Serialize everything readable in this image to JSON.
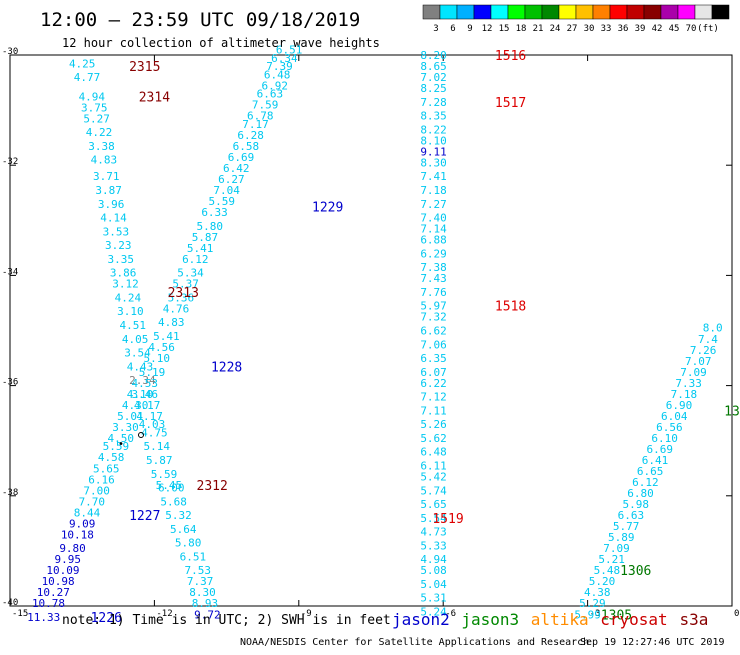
{
  "title": "12:00 – 23:59 UTC 09/18/2019",
  "subtitle": "12 hour collection of altimeter wave heights",
  "colorbar": {
    "colors": [
      "#808080",
      "#00e5ff",
      "#00b0ff",
      "#0000ff",
      "#00ffff",
      "#00ff00",
      "#00c000",
      "#008800",
      "#ffff00",
      "#ffc000",
      "#ff8000",
      "#ff0000",
      "#c00000",
      "#880000",
      "#aa00aa",
      "#ff00ff",
      "#e6e6e6",
      "#000000"
    ],
    "labels": [
      "3",
      "6",
      "9",
      "12",
      "15",
      "18",
      "21",
      "24",
      "27",
      "30",
      "33",
      "36",
      "39",
      "42",
      "45",
      "70",
      "(ft)"
    ]
  },
  "map": {
    "x_range": [
      -15,
      0
    ],
    "y_range": [
      -40,
      -30
    ],
    "x_ticks": [
      "-15",
      "-12",
      "-9",
      "-6",
      "-3",
      "0"
    ],
    "y_ticks": [
      "-30",
      "-32",
      "-34",
      "-36",
      "-38",
      "-40"
    ]
  },
  "satellite_colors": {
    "jason2": "#0000cc",
    "jason3": "#008800",
    "altika": "#ff8c00",
    "cryosat": "#cc0000",
    "s3a": "#880000"
  },
  "tracks": [
    {
      "name": "track-2315-2313",
      "color": "#00c8f0",
      "points": [
        {
          "lon": -13.5,
          "lat": -30.15,
          "v": "4.25"
        },
        {
          "lon": -13.4,
          "lat": -30.4,
          "v": "4.77"
        },
        {
          "lon": -13.3,
          "lat": -30.75,
          "v": "4.94"
        },
        {
          "lon": -13.25,
          "lat": -30.95,
          "v": "3.75"
        },
        {
          "lon": -13.2,
          "lat": -31.15,
          "v": "5.27"
        },
        {
          "lon": -13.15,
          "lat": -31.4,
          "v": "4.22"
        },
        {
          "lon": -13.1,
          "lat": -31.65,
          "v": "3.38"
        },
        {
          "lon": -13.05,
          "lat": -31.9,
          "v": "4.83"
        },
        {
          "lon": -13.0,
          "lat": -32.2,
          "v": "3.71"
        },
        {
          "lon": -12.95,
          "lat": -32.45,
          "v": "3.87"
        },
        {
          "lon": -12.9,
          "lat": -32.7,
          "v": "3.96"
        },
        {
          "lon": -12.85,
          "lat": -32.95,
          "v": "4.14"
        },
        {
          "lon": -12.8,
          "lat": -33.2,
          "v": "3.53"
        },
        {
          "lon": -12.75,
          "lat": -33.45,
          "v": "3.23"
        },
        {
          "lon": -12.7,
          "lat": -33.7,
          "v": "3.35"
        },
        {
          "lon": -12.65,
          "lat": -33.95,
          "v": "3.86"
        },
        {
          "lon": -12.6,
          "lat": -34.15,
          "v": "3.12"
        },
        {
          "lon": -12.55,
          "lat": -34.4,
          "v": "4.24"
        },
        {
          "lon": -12.5,
          "lat": -34.65,
          "v": "3.10"
        },
        {
          "lon": -12.45,
          "lat": -34.9,
          "v": "4.51"
        },
        {
          "lon": -12.4,
          "lat": -35.15,
          "v": "4.05"
        },
        {
          "lon": -12.35,
          "lat": -35.4,
          "v": "3.54"
        },
        {
          "lon": -12.3,
          "lat": -35.65,
          "v": "4.43"
        },
        {
          "lon": -12.25,
          "lat": -35.9,
          "v": "2.34",
          "color": "#808080"
        },
        {
          "lon": -12.2,
          "lat": -36.15,
          "v": "3.46"
        },
        {
          "lon": -12.15,
          "lat": -36.35,
          "v": "4.17"
        },
        {
          "lon": -12.1,
          "lat": -36.55,
          "v": "4.17"
        },
        {
          "lon": -12.05,
          "lat": -36.7,
          "v": "4.03"
        },
        {
          "lon": -12.0,
          "lat": -36.85,
          "v": "4.75"
        },
        {
          "lon": -11.95,
          "lat": -37.1,
          "v": "5.14"
        },
        {
          "lon": -11.9,
          "lat": -37.35,
          "v": "5.87"
        },
        {
          "lon": -11.8,
          "lat": -37.6,
          "v": "5.59"
        },
        {
          "lon": -11.7,
          "lat": -37.8,
          "v": "5.45"
        },
        {
          "lon": -11.65,
          "lat": -37.85,
          "v": "6.00"
        },
        {
          "lon": -11.6,
          "lat": -38.1,
          "v": "5.68"
        },
        {
          "lon": -11.5,
          "lat": -38.35,
          "v": "5.32"
        },
        {
          "lon": -11.4,
          "lat": -38.6,
          "v": "5.64"
        },
        {
          "lon": -11.3,
          "lat": -38.85,
          "v": "5.80"
        },
        {
          "lon": -11.2,
          "lat": -39.1,
          "v": "6.51"
        },
        {
          "lon": -11.1,
          "lat": -39.35,
          "v": "7.53"
        },
        {
          "lon": -11.05,
          "lat": -39.55,
          "v": "7.37"
        },
        {
          "lon": -11.0,
          "lat": -39.75,
          "v": "8.30"
        },
        {
          "lon": -10.95,
          "lat": -39.95,
          "v": "8.93"
        },
        {
          "lon": -10.9,
          "lat": -40.15,
          "v": "9.72",
          "color": "#0000cc"
        }
      ]
    },
    {
      "name": "track-1226-1229",
      "color": "#00c8f0",
      "points": [
        {
          "lon": -14.3,
          "lat": -40.2,
          "v": "11.33",
          "color": "#0000cc"
        },
        {
          "lon": -14.2,
          "lat": -39.95,
          "v": "10.78",
          "color": "#0000cc"
        },
        {
          "lon": -14.1,
          "lat": -39.75,
          "v": "10.27",
          "color": "#0000cc"
        },
        {
          "lon": -14.0,
          "lat": -39.55,
          "v": "10.98",
          "color": "#0000cc"
        },
        {
          "lon": -13.9,
          "lat": -39.35,
          "v": "10.09",
          "color": "#0000cc"
        },
        {
          "lon": -13.8,
          "lat": -39.15,
          "v": "9.95",
          "color": "#0000cc"
        },
        {
          "lon": -13.7,
          "lat": -38.95,
          "v": "9.80",
          "color": "#0000cc"
        },
        {
          "lon": -13.6,
          "lat": -38.7,
          "v": "10.18",
          "color": "#0000cc"
        },
        {
          "lon": -13.5,
          "lat": -38.5,
          "v": "9.09",
          "color": "#0000cc"
        },
        {
          "lon": -13.4,
          "lat": -38.3,
          "v": "8.44"
        },
        {
          "lon": -13.3,
          "lat": -38.1,
          "v": "7.70"
        },
        {
          "lon": -13.2,
          "lat": -37.9,
          "v": "7.00"
        },
        {
          "lon": -13.1,
          "lat": -37.7,
          "v": "6.16"
        },
        {
          "lon": -13.0,
          "lat": -37.5,
          "v": "5.65"
        },
        {
          "lon": -12.9,
          "lat": -37.3,
          "v": "4.58"
        },
        {
          "lon": -12.8,
          "lat": -37.1,
          "v": "5.59"
        },
        {
          "lon": -12.7,
          "lat": -36.95,
          "v": "4.50"
        },
        {
          "lon": -12.6,
          "lat": -36.75,
          "v": "3.30"
        },
        {
          "lon": -12.5,
          "lat": -36.55,
          "v": "5.01"
        },
        {
          "lon": -12.4,
          "lat": -36.35,
          "v": "4.30"
        },
        {
          "lon": -12.3,
          "lat": -36.15,
          "v": "4.10"
        },
        {
          "lon": -12.2,
          "lat": -35.95,
          "v": "4.53"
        },
        {
          "lon": -12.05,
          "lat": -35.75,
          "v": "5.19"
        },
        {
          "lon": -11.95,
          "lat": -35.5,
          "v": "5.10"
        },
        {
          "lon": -11.85,
          "lat": -35.3,
          "v": "4.56"
        },
        {
          "lon": -11.75,
          "lat": -35.1,
          "v": "5.41"
        },
        {
          "lon": -11.65,
          "lat": -34.85,
          "v": "4.83"
        },
        {
          "lon": -11.55,
          "lat": -34.6,
          "v": "4.76"
        },
        {
          "lon": -11.45,
          "lat": -34.4,
          "v": "5.36"
        },
        {
          "lon": -11.35,
          "lat": -34.15,
          "v": "5.37"
        },
        {
          "lon": -11.25,
          "lat": -33.95,
          "v": "5.34"
        },
        {
          "lon": -11.15,
          "lat": -33.7,
          "v": "6.12"
        },
        {
          "lon": -11.05,
          "lat": -33.5,
          "v": "5.41"
        },
        {
          "lon": -10.95,
          "lat": -33.3,
          "v": "5.87"
        },
        {
          "lon": -10.85,
          "lat": -33.1,
          "v": "5.80"
        },
        {
          "lon": -10.75,
          "lat": -32.85,
          "v": "6.33"
        },
        {
          "lon": -10.6,
          "lat": -32.65,
          "v": "5.59"
        },
        {
          "lon": -10.5,
          "lat": -32.45,
          "v": "7.04"
        },
        {
          "lon": -10.4,
          "lat": -32.25,
          "v": "6.27"
        },
        {
          "lon": -10.3,
          "lat": -32.05,
          "v": "6.42"
        },
        {
          "lon": -10.2,
          "lat": -31.85,
          "v": "6.69"
        },
        {
          "lon": -10.1,
          "lat": -31.65,
          "v": "6.58"
        },
        {
          "lon": -10.0,
          "lat": -31.45,
          "v": "6.28"
        },
        {
          "lon": -9.9,
          "lat": -31.25,
          "v": "7.17"
        },
        {
          "lon": -9.8,
          "lat": -31.1,
          "v": "6.78"
        },
        {
          "lon": -9.7,
          "lat": -30.9,
          "v": "7.59"
        },
        {
          "lon": -9.6,
          "lat": -30.7,
          "v": "6.63"
        },
        {
          "lon": -9.5,
          "lat": -30.55,
          "v": "6.92"
        },
        {
          "lon": -9.45,
          "lat": -30.35,
          "v": "6.48"
        },
        {
          "lon": -9.4,
          "lat": -30.2,
          "v": "7.39"
        },
        {
          "lon": -9.3,
          "lat": -30.05,
          "v": "6.34"
        },
        {
          "lon": -9.2,
          "lat": -29.9,
          "v": "6.51"
        }
      ]
    },
    {
      "name": "track-1516-1519",
      "color": "#00c8f0",
      "points": [
        {
          "lon": -6.2,
          "lat": -30.0,
          "v": "8.20"
        },
        {
          "lon": -6.2,
          "lat": -30.2,
          "v": "8.65"
        },
        {
          "lon": -6.2,
          "lat": -30.4,
          "v": "7.02"
        },
        {
          "lon": -6.2,
          "lat": -30.6,
          "v": "8.25"
        },
        {
          "lon": -6.2,
          "lat": -30.85,
          "v": "7.28"
        },
        {
          "lon": -6.2,
          "lat": -31.1,
          "v": "8.35"
        },
        {
          "lon": -6.2,
          "lat": -31.35,
          "v": "8.22"
        },
        {
          "lon": -6.2,
          "lat": -31.55,
          "v": "8.10"
        },
        {
          "lon": -6.2,
          "lat": -31.75,
          "v": "9.11",
          "color": "#0000cc"
        },
        {
          "lon": -6.2,
          "lat": -31.95,
          "v": "8.30"
        },
        {
          "lon": -6.2,
          "lat": -32.2,
          "v": "7.41"
        },
        {
          "lon": -6.2,
          "lat": -32.45,
          "v": "7.18"
        },
        {
          "lon": -6.2,
          "lat": -32.7,
          "v": "7.27"
        },
        {
          "lon": -6.2,
          "lat": -32.95,
          "v": "7.40"
        },
        {
          "lon": -6.2,
          "lat": -33.15,
          "v": "7.14"
        },
        {
          "lon": -6.2,
          "lat": -33.35,
          "v": "6.88"
        },
        {
          "lon": -6.2,
          "lat": -33.6,
          "v": "6.29"
        },
        {
          "lon": -6.2,
          "lat": -33.85,
          "v": "7.38"
        },
        {
          "lon": -6.2,
          "lat": -34.05,
          "v": "7.43"
        },
        {
          "lon": -6.2,
          "lat": -34.3,
          "v": "7.76"
        },
        {
          "lon": -6.2,
          "lat": -34.55,
          "v": "5.97"
        },
        {
          "lon": -6.2,
          "lat": -34.75,
          "v": "7.32"
        },
        {
          "lon": -6.2,
          "lat": -35.0,
          "v": "6.62"
        },
        {
          "lon": -6.2,
          "lat": -35.25,
          "v": "7.06"
        },
        {
          "lon": -6.2,
          "lat": -35.5,
          "v": "6.35"
        },
        {
          "lon": -6.2,
          "lat": -35.75,
          "v": "6.07"
        },
        {
          "lon": -6.2,
          "lat": -35.95,
          "v": "6.22"
        },
        {
          "lon": -6.2,
          "lat": -36.2,
          "v": "7.12"
        },
        {
          "lon": -6.2,
          "lat": -36.45,
          "v": "7.11"
        },
        {
          "lon": -6.2,
          "lat": -36.7,
          "v": "5.26"
        },
        {
          "lon": -6.2,
          "lat": -36.95,
          "v": "5.62"
        },
        {
          "lon": -6.2,
          "lat": -37.2,
          "v": "6.48"
        },
        {
          "lon": -6.2,
          "lat": -37.45,
          "v": "6.11"
        },
        {
          "lon": -6.2,
          "lat": -37.65,
          "v": "5.42"
        },
        {
          "lon": -6.2,
          "lat": -37.9,
          "v": "5.74"
        },
        {
          "lon": -6.2,
          "lat": -38.15,
          "v": "5.65"
        },
        {
          "lon": -6.2,
          "lat": -38.4,
          "v": "5.54"
        },
        {
          "lon": -6.2,
          "lat": -38.65,
          "v": "4.73"
        },
        {
          "lon": -6.2,
          "lat": -38.9,
          "v": "5.33"
        },
        {
          "lon": -6.2,
          "lat": -39.15,
          "v": "4.94"
        },
        {
          "lon": -6.2,
          "lat": -39.35,
          "v": "5.08"
        },
        {
          "lon": -6.2,
          "lat": -39.6,
          "v": "5.04"
        },
        {
          "lon": -6.2,
          "lat": -39.85,
          "v": "5.31"
        },
        {
          "lon": -6.2,
          "lat": -40.1,
          "v": "5.24"
        }
      ]
    },
    {
      "name": "track-1305-13",
      "color": "#00c8f0",
      "points": [
        {
          "lon": -3.0,
          "lat": -40.15,
          "v": "5.99"
        },
        {
          "lon": -2.9,
          "lat": -39.95,
          "v": "5.29"
        },
        {
          "lon": -2.8,
          "lat": -39.75,
          "v": "4.38"
        },
        {
          "lon": -2.7,
          "lat": -39.55,
          "v": "5.20"
        },
        {
          "lon": -2.6,
          "lat": -39.35,
          "v": "5.48"
        },
        {
          "lon": -2.5,
          "lat": -39.15,
          "v": "5.21"
        },
        {
          "lon": -2.4,
          "lat": -38.95,
          "v": "7.09"
        },
        {
          "lon": -2.3,
          "lat": -38.75,
          "v": "5.89"
        },
        {
          "lon": -2.2,
          "lat": -38.55,
          "v": "5.77"
        },
        {
          "lon": -2.1,
          "lat": -38.35,
          "v": "6.63"
        },
        {
          "lon": -2.0,
          "lat": -38.15,
          "v": "5.98"
        },
        {
          "lon": -1.9,
          "lat": -37.95,
          "v": "6.80"
        },
        {
          "lon": -1.8,
          "lat": -37.75,
          "v": "6.12"
        },
        {
          "lon": -1.7,
          "lat": -37.55,
          "v": "6.65"
        },
        {
          "lon": -1.6,
          "lat": -37.35,
          "v": "6.41"
        },
        {
          "lon": -1.5,
          "lat": -37.15,
          "v": "6.69"
        },
        {
          "lon": -1.4,
          "lat": -36.95,
          "v": "6.10"
        },
        {
          "lon": -1.3,
          "lat": -36.75,
          "v": "6.56"
        },
        {
          "lon": -1.2,
          "lat": -36.55,
          "v": "6.04"
        },
        {
          "lon": -1.1,
          "lat": -36.35,
          "v": "6.90"
        },
        {
          "lon": -1.0,
          "lat": -36.15,
          "v": "7.18"
        },
        {
          "lon": -0.9,
          "lat": -35.95,
          "v": "7.33"
        },
        {
          "lon": -0.8,
          "lat": -35.75,
          "v": "7.09"
        },
        {
          "lon": -0.7,
          "lat": -35.55,
          "v": "7.07"
        },
        {
          "lon": -0.6,
          "lat": -35.35,
          "v": "7.26"
        },
        {
          "lon": -0.5,
          "lat": -35.15,
          "v": "7.4"
        },
        {
          "lon": -0.4,
          "lat": -34.95,
          "v": "8.0"
        }
      ]
    }
  ],
  "time_labels": [
    {
      "text": "2315",
      "color": "#880000",
      "lon": -12.2,
      "lat": -30.2
    },
    {
      "text": "2314",
      "color": "#880000",
      "lon": -12.0,
      "lat": -30.75
    },
    {
      "text": "2313",
      "color": "#880000",
      "lon": -11.4,
      "lat": -34.3
    },
    {
      "text": "2312",
      "color": "#880000",
      "lon": -10.8,
      "lat": -37.8
    },
    {
      "text": "1229",
      "color": "#0000cc",
      "lon": -8.4,
      "lat": -32.75
    },
    {
      "text": "1228",
      "color": "#0000cc",
      "lon": -10.5,
      "lat": -35.65
    },
    {
      "text": "1227",
      "color": "#0000cc",
      "lon": -12.2,
      "lat": -38.35
    },
    {
      "text": "1226",
      "color": "#0000cc",
      "lon": -13.0,
      "lat": -40.2
    },
    {
      "text": "1516",
      "color": "#dd0000",
      "lon": -4.6,
      "lat": -30.0
    },
    {
      "text": "1517",
      "color": "#dd0000",
      "lon": -4.6,
      "lat": -30.85
    },
    {
      "text": "1518",
      "color": "#dd0000",
      "lon": -4.6,
      "lat": -34.55
    },
    {
      "text": "1519",
      "color": "#dd0000",
      "lon": -5.9,
      "lat": -38.4
    },
    {
      "text": "1306",
      "color": "#007700",
      "lon": -2.0,
      "lat": -39.35
    },
    {
      "text": "1305",
      "color": "#007700",
      "lon": -2.4,
      "lat": -40.15
    },
    {
      "text": "13",
      "color": "#007700",
      "lon": 0.0,
      "lat": -36.45
    }
  ],
  "footer": {
    "note": "note: 1) Time is in UTC; 2) SWH is in feet",
    "legend": [
      {
        "name": "jason2",
        "color": "#0000cc"
      },
      {
        "name": "jason3",
        "color": "#008800"
      },
      {
        "name": "altika",
        "color": "#ff8c00"
      },
      {
        "name": "cryosat",
        "color": "#cc0000"
      },
      {
        "name": "s3a",
        "color": "#880000"
      }
    ],
    "credit": "NOAA/NESDIS Center for Satellite Applications and Research",
    "timestamp": "Sep 19 12:27:46 UTC 2019"
  }
}
